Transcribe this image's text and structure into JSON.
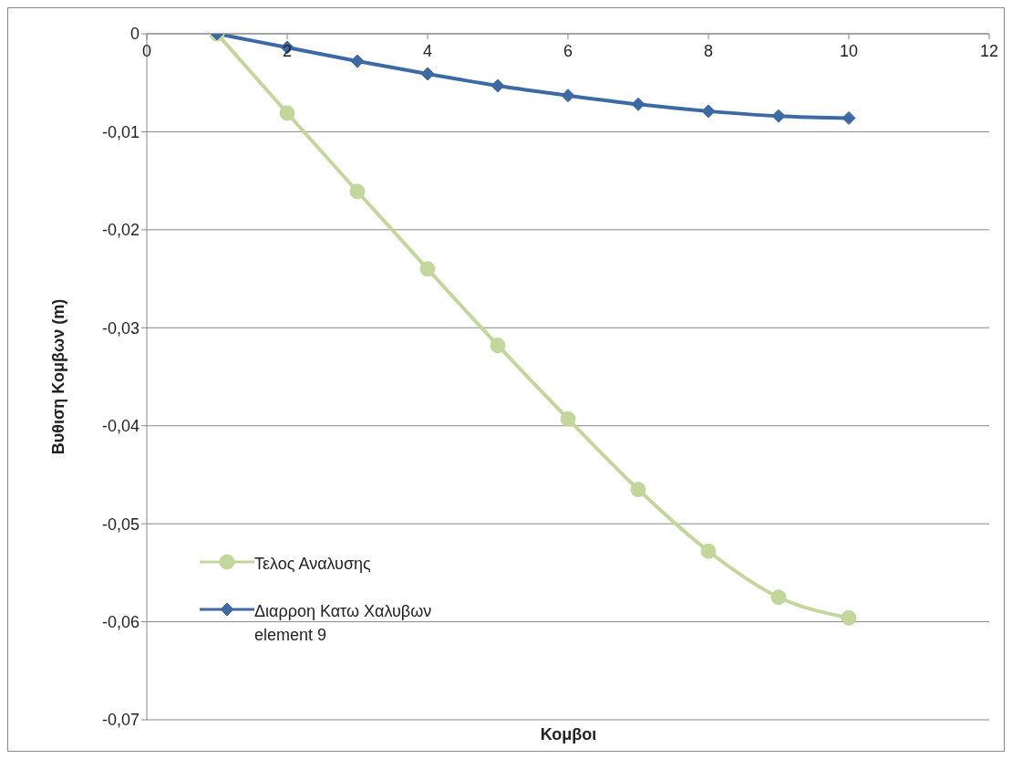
{
  "chart_data": {
    "type": "line",
    "xlabel": "Κομβοι",
    "ylabel": "Βυθιση Κομβων (m)",
    "x": [
      1,
      2,
      3,
      4,
      5,
      6,
      7,
      8,
      9,
      10
    ],
    "series": [
      {
        "name": "Τελος Αναλυσης",
        "color": "#c3d69b",
        "marker": "circle",
        "values": [
          0,
          -0.0081,
          -0.0161,
          -0.024,
          -0.0318,
          -0.0393,
          -0.0465,
          -0.0528,
          -0.0575,
          -0.0596
        ]
      },
      {
        "name": "Διαρροη Κατω Χαλυβων element 9",
        "color": "#3d6aa3",
        "marker": "diamond",
        "values": [
          0,
          -0.0014,
          -0.0028,
          -0.0041,
          -0.0053,
          -0.0063,
          -0.0072,
          -0.0079,
          -0.0084,
          -0.0086
        ]
      }
    ],
    "xlim": [
      0,
      12
    ],
    "xticks": [
      0,
      2,
      4,
      6,
      8,
      10,
      12
    ],
    "ylim": [
      -0.07,
      0
    ],
    "yticks": [
      {
        "value": -0.07,
        "label": "-0,07"
      },
      {
        "value": -0.06,
        "label": "-0,06"
      },
      {
        "value": -0.05,
        "label": "-0,05"
      },
      {
        "value": -0.04,
        "label": "-0,04"
      },
      {
        "value": -0.03,
        "label": "-0,03"
      },
      {
        "value": -0.02,
        "label": "-0,02"
      },
      {
        "value": -0.01,
        "label": "-0,01"
      },
      {
        "value": 0,
        "label": "0"
      }
    ],
    "grid": "y",
    "legend": "bottom left",
    "line_style": "solid"
  }
}
